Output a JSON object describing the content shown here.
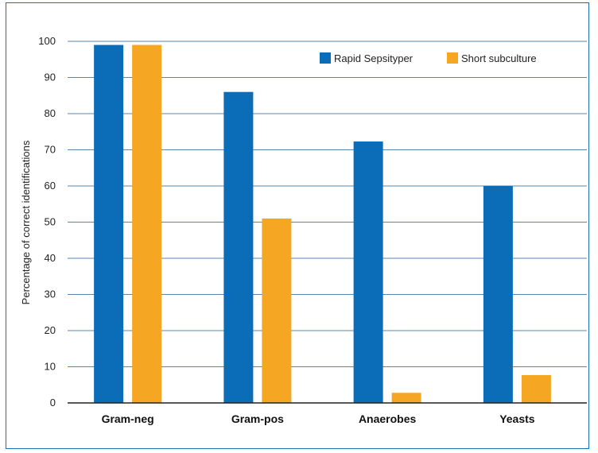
{
  "chart_data": {
    "type": "bar",
    "title": "",
    "xlabel": "",
    "ylabel": "Percentage of correct identifications",
    "categories": [
      "Gram-neg",
      "Gram-pos",
      "Anaerobes",
      "Yeasts"
    ],
    "series": [
      {
        "name": "Rapid Sepsityper",
        "color": "#0b6db7",
        "values": [
          99,
          86,
          72.3,
          60
        ]
      },
      {
        "name": "Short subculture",
        "color": "#f5a623",
        "values": [
          99,
          51,
          2.8,
          7.7
        ]
      }
    ],
    "ylim": [
      0,
      100
    ],
    "yticks": [
      0,
      10,
      20,
      30,
      40,
      50,
      60,
      70,
      80,
      90,
      100
    ],
    "grid": true,
    "legend_position": "top-right"
  }
}
